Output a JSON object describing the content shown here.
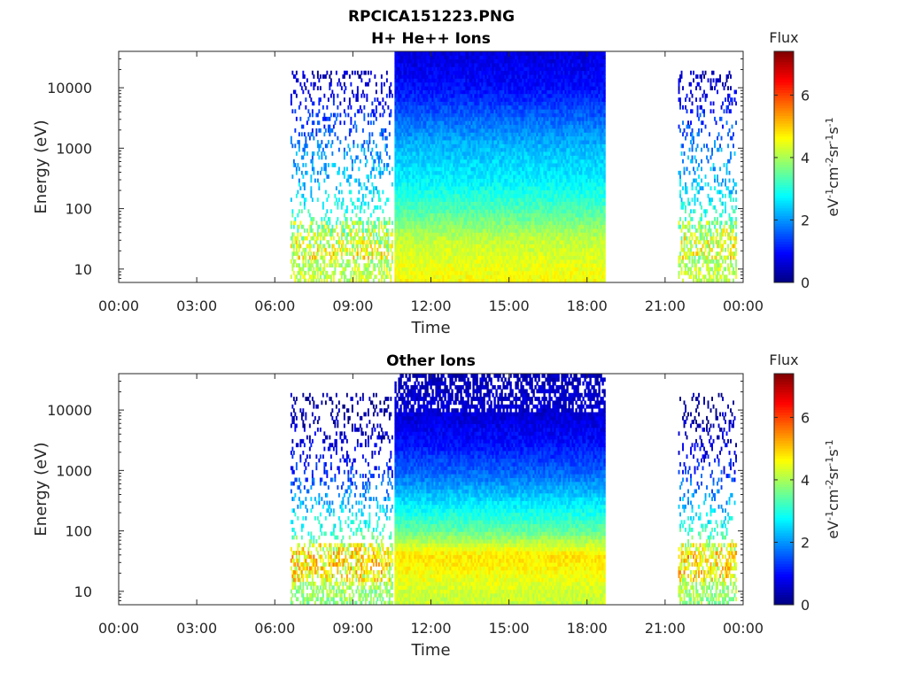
{
  "figure_title": "RPCICA151223.PNG",
  "chart_data": [
    {
      "type": "heatmap",
      "title": "H+ He++ Ions",
      "xlabel": "Time",
      "ylabel": "Energy (eV)",
      "x_ticks": [
        "00:00",
        "03:00",
        "06:00",
        "09:00",
        "12:00",
        "15:00",
        "18:00",
        "21:00",
        "00:00"
      ],
      "x_range_hours": [
        0,
        24
      ],
      "y_scale": "log",
      "y_range": [
        6,
        40000
      ],
      "y_ticks": [
        10,
        100,
        1000,
        10000
      ],
      "y_tick_labels": [
        "10",
        "100",
        "1000",
        "10000"
      ],
      "colorbar": {
        "title": "Flux",
        "units": "eV-1cm-2sr-1s-1",
        "range": [
          0,
          7.4
        ],
        "ticks": [
          0,
          2,
          4,
          6
        ],
        "tick_labels": [
          "0",
          "2",
          "4",
          "6"
        ],
        "colormap": "jet"
      },
      "regions": [
        {
          "name": "sparse",
          "start_h": 6.6,
          "end_h": 10.5,
          "note_energy_max": 18000
        },
        {
          "name": "dense",
          "start_h": 10.6,
          "end_h": 18.7
        },
        {
          "name": "sparse",
          "start_h": 21.5,
          "end_h": 23.7,
          "note_energy_max": 18000
        }
      ],
      "flux_profile": {
        "energy_eV": [
          6,
          10,
          30,
          100,
          300,
          1000,
          3000,
          10000,
          40000
        ],
        "flux": [
          4.6,
          4.5,
          4.2,
          3.3,
          2.7,
          2.3,
          1.7,
          1.0,
          0.7
        ]
      }
    },
    {
      "type": "heatmap",
      "title": "Other Ions",
      "xlabel": "Time",
      "ylabel": "Energy (eV)",
      "x_ticks": [
        "00:00",
        "03:00",
        "06:00",
        "09:00",
        "12:00",
        "15:00",
        "18:00",
        "21:00",
        "00:00"
      ],
      "x_range_hours": [
        0,
        24
      ],
      "y_scale": "log",
      "y_range": [
        6,
        40000
      ],
      "y_ticks": [
        10,
        100,
        1000,
        10000
      ],
      "y_tick_labels": [
        "10",
        "100",
        "1000",
        "10000"
      ],
      "colorbar": {
        "title": "Flux",
        "units": "eV-1cm-2sr-1s-1",
        "range": [
          0,
          7.4
        ],
        "ticks": [
          0,
          2,
          4,
          6
        ],
        "tick_labels": [
          "0",
          "2",
          "4",
          "6"
        ],
        "colormap": "jet"
      },
      "regions": [
        {
          "name": "sparse",
          "start_h": 6.6,
          "end_h": 10.5,
          "note_energy_max": 18000
        },
        {
          "name": "dense",
          "start_h": 10.6,
          "end_h": 18.7
        },
        {
          "name": "sparse",
          "start_h": 21.5,
          "end_h": 23.7,
          "note_energy_max": 18000
        }
      ],
      "flux_profile": {
        "energy_eV": [
          6,
          10,
          20,
          40,
          100,
          300,
          1000,
          3000,
          10000,
          40000
        ],
        "flux": [
          4.2,
          4.3,
          4.6,
          4.8,
          3.5,
          2.6,
          1.6,
          1.0,
          0.6,
          0.4
        ]
      }
    }
  ]
}
